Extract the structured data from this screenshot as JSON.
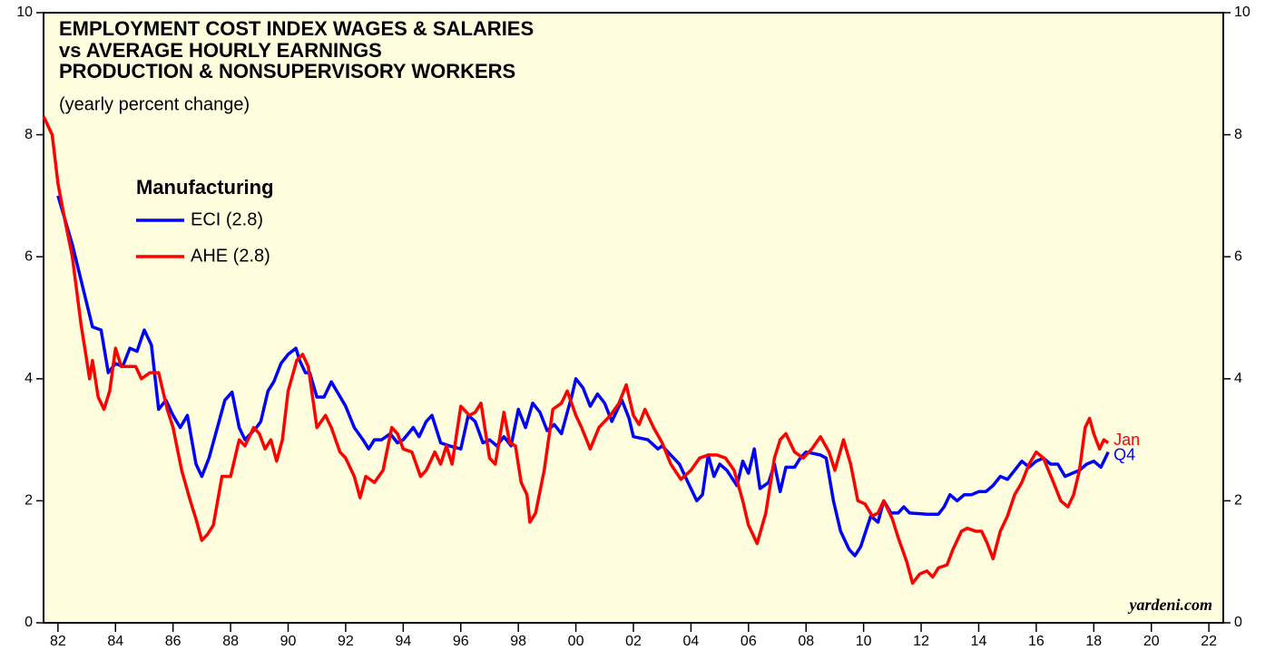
{
  "chart_data": {
    "type": "line",
    "title": [
      "EMPLOYMENT COST INDEX WAGES & SALARIES",
      "vs AVERAGE HOURLY EARNINGS",
      "PRODUCTION & NONSUPERVISORY WORKERS"
    ],
    "subtitle": "(yearly percent change)",
    "legend_title": "Manufacturing",
    "source": "yardeni.com",
    "xlim": [
      1981.5,
      2022.5
    ],
    "ylim": [
      0,
      10
    ],
    "yticks": [
      0,
      2,
      4,
      6,
      8,
      10
    ],
    "xticks": [
      {
        "value": 1982,
        "label": "82"
      },
      {
        "value": 1984,
        "label": "84"
      },
      {
        "value": 1986,
        "label": "86"
      },
      {
        "value": 1988,
        "label": "88"
      },
      {
        "value": 1990,
        "label": "90"
      },
      {
        "value": 1992,
        "label": "92"
      },
      {
        "value": 1994,
        "label": "94"
      },
      {
        "value": 1996,
        "label": "96"
      },
      {
        "value": 1998,
        "label": "98"
      },
      {
        "value": 2000,
        "label": "00"
      },
      {
        "value": 2002,
        "label": "02"
      },
      {
        "value": 2004,
        "label": "04"
      },
      {
        "value": 2006,
        "label": "06"
      },
      {
        "value": 2008,
        "label": "08"
      },
      {
        "value": 2010,
        "label": "10"
      },
      {
        "value": 2012,
        "label": "12"
      },
      {
        "value": 2014,
        "label": "14"
      },
      {
        "value": 2016,
        "label": "16"
      },
      {
        "value": 2018,
        "label": "18"
      },
      {
        "value": 2020,
        "label": "20"
      },
      {
        "value": 2022,
        "label": "22"
      }
    ],
    "background": "#ffffe0",
    "series": [
      {
        "name": "ECI (2.8)",
        "color": "#0000ff",
        "end_label": "Q4",
        "x": [
          1982.0,
          1982.5,
          1983.2,
          1983.5,
          1983.75,
          1984.0,
          1984.25,
          1984.5,
          1984.75,
          1985.0,
          1985.25,
          1985.5,
          1985.75,
          1986.0,
          1986.25,
          1986.5,
          1986.8,
          1987.0,
          1987.25,
          1987.6,
          1987.8,
          1988.05,
          1988.3,
          1988.5,
          1988.9,
          1989.05,
          1989.3,
          1989.5,
          1989.75,
          1990.0,
          1990.27,
          1990.4,
          1990.6,
          1990.75,
          1991.0,
          1991.25,
          1991.5,
          1991.75,
          1992.0,
          1992.3,
          1992.6,
          1992.8,
          1993.0,
          1993.25,
          1993.55,
          1993.8,
          1994.0,
          1994.35,
          1994.55,
          1994.8,
          1995.0,
          1995.3,
          1995.6,
          1996.0,
          1996.26,
          1996.5,
          1996.77,
          1997.0,
          1997.25,
          1997.5,
          1997.75,
          1998.0,
          1998.25,
          1998.5,
          1998.75,
          1999.0,
          1999.25,
          1999.5,
          1999.7,
          1999.85,
          2000.0,
          2000.25,
          2000.5,
          2000.75,
          2001.0,
          2001.25,
          2001.6,
          2001.85,
          2002.0,
          2002.5,
          2002.85,
          2003.0,
          2003.3,
          2003.6,
          2003.9,
          2004.2,
          2004.4,
          2004.6,
          2004.8,
          2005.0,
          2005.25,
          2005.6,
          2005.8,
          2006.0,
          2006.2,
          2006.4,
          2006.7,
          2006.9,
          2007.1,
          2007.3,
          2007.6,
          2007.8,
          2008.0,
          2008.5,
          2008.7,
          2008.95,
          2009.2,
          2009.5,
          2009.7,
          2009.9,
          2010.25,
          2010.5,
          2010.7,
          2010.95,
          2011.2,
          2011.4,
          2011.6,
          2012.2,
          2012.6,
          2012.8,
          2013.0,
          2013.25,
          2013.5,
          2013.75,
          2014.0,
          2014.25,
          2014.5,
          2014.75,
          2015.0,
          2015.25,
          2015.5,
          2015.75,
          2016.0,
          2016.25,
          2016.5,
          2016.75,
          2017.0,
          2017.25,
          2017.5,
          2017.75,
          2018.0,
          2018.25,
          2018.5
        ],
        "values": [
          7.0,
          6.2,
          4.85,
          4.8,
          4.1,
          4.25,
          4.2,
          4.5,
          4.45,
          4.8,
          4.55,
          3.5,
          3.65,
          3.4,
          3.2,
          3.4,
          2.6,
          2.4,
          2.7,
          3.3,
          3.65,
          3.78,
          3.2,
          3.0,
          3.2,
          3.3,
          3.8,
          3.95,
          4.25,
          4.4,
          4.5,
          4.3,
          4.1,
          4.1,
          3.7,
          3.7,
          3.95,
          3.75,
          3.55,
          3.2,
          3.0,
          2.85,
          3.0,
          3.0,
          3.1,
          2.95,
          3.0,
          3.2,
          3.05,
          3.3,
          3.4,
          2.95,
          2.9,
          2.85,
          3.4,
          3.3,
          2.95,
          3.0,
          2.9,
          3.05,
          2.9,
          3.5,
          3.2,
          3.6,
          3.45,
          3.15,
          3.25,
          3.1,
          3.45,
          3.7,
          4.0,
          3.85,
          3.55,
          3.75,
          3.6,
          3.3,
          3.65,
          3.35,
          3.05,
          3.0,
          2.85,
          2.9,
          2.75,
          2.6,
          2.3,
          2.0,
          2.1,
          2.75,
          2.4,
          2.6,
          2.5,
          2.25,
          2.65,
          2.45,
          2.85,
          2.2,
          2.3,
          2.6,
          2.15,
          2.55,
          2.55,
          2.7,
          2.8,
          2.75,
          2.7,
          2.0,
          1.5,
          1.2,
          1.1,
          1.25,
          1.75,
          1.65,
          2.0,
          1.8,
          1.8,
          1.9,
          1.8,
          1.78,
          1.78,
          1.9,
          2.1,
          2.0,
          2.1,
          2.1,
          2.15,
          2.15,
          2.25,
          2.4,
          2.35,
          2.5,
          2.65,
          2.55,
          2.65,
          2.7,
          2.6,
          2.6,
          2.4,
          2.45,
          2.5,
          2.6,
          2.65,
          2.55,
          2.8
        ]
      },
      {
        "name": "AHE (2.8)",
        "color": "#ff0000",
        "end_label": "Jan",
        "x": [
          1981.5,
          1981.8,
          1982.0,
          1982.2,
          1982.5,
          1982.8,
          1983.0,
          1983.1,
          1983.2,
          1983.4,
          1983.6,
          1983.8,
          1984.0,
          1984.2,
          1984.5,
          1984.7,
          1984.9,
          1985.2,
          1985.5,
          1985.8,
          1986.0,
          1986.3,
          1986.6,
          1986.8,
          1987.0,
          1987.2,
          1987.4,
          1987.7,
          1988.0,
          1988.3,
          1988.5,
          1988.8,
          1989.0,
          1989.2,
          1989.4,
          1989.6,
          1989.8,
          1990.0,
          1990.3,
          1990.5,
          1990.7,
          1991.0,
          1991.3,
          1991.5,
          1991.8,
          1992.0,
          1992.3,
          1992.5,
          1992.7,
          1993.0,
          1993.3,
          1993.6,
          1993.8,
          1994.0,
          1994.3,
          1994.6,
          1994.8,
          1995.1,
          1995.3,
          1995.5,
          1995.7,
          1996.0,
          1996.3,
          1996.5,
          1996.7,
          1997.0,
          1997.2,
          1997.5,
          1997.7,
          1997.9,
          1998.1,
          1998.3,
          1998.4,
          1998.6,
          1998.9,
          1999.2,
          1999.5,
          1999.7,
          2000.0,
          2000.2,
          2000.5,
          2000.8,
          2001.2,
          2001.5,
          2001.75,
          2002.0,
          2002.2,
          2002.4,
          2002.7,
          2003.0,
          2003.3,
          2003.65,
          2004.0,
          2004.3,
          2004.6,
          2004.9,
          2005.2,
          2005.5,
          2005.8,
          2006.0,
          2006.3,
          2006.6,
          2006.9,
          2007.1,
          2007.3,
          2007.6,
          2007.9,
          2008.2,
          2008.5,
          2008.8,
          2009.0,
          2009.3,
          2009.55,
          2009.8,
          2010.05,
          2010.3,
          2010.5,
          2010.7,
          2011.0,
          2011.2,
          2011.5,
          2011.7,
          2011.95,
          2012.2,
          2012.4,
          2012.6,
          2012.9,
          2013.1,
          2013.4,
          2013.6,
          2013.9,
          2014.1,
          2014.3,
          2014.5,
          2014.75,
          2015.0,
          2015.25,
          2015.5,
          2015.75,
          2016.0,
          2016.25,
          2016.6,
          2016.85,
          2017.1,
          2017.3,
          2017.5,
          2017.7,
          2017.85,
          2018.0,
          2018.2,
          2018.35,
          2018.5
        ],
        "values": [
          8.3,
          8.0,
          7.2,
          6.7,
          6.0,
          4.9,
          4.3,
          4.0,
          4.3,
          3.7,
          3.5,
          3.8,
          4.5,
          4.2,
          4.2,
          4.2,
          4.0,
          4.1,
          4.1,
          3.5,
          3.2,
          2.5,
          2.0,
          1.7,
          1.35,
          1.45,
          1.6,
          2.4,
          2.4,
          3.0,
          2.9,
          3.2,
          3.1,
          2.85,
          3.0,
          2.65,
          3.0,
          3.8,
          4.3,
          4.4,
          4.2,
          3.2,
          3.4,
          3.2,
          2.8,
          2.7,
          2.4,
          2.05,
          2.4,
          2.3,
          2.5,
          3.2,
          3.1,
          2.85,
          2.8,
          2.4,
          2.5,
          2.8,
          2.6,
          2.9,
          2.6,
          3.55,
          3.4,
          3.45,
          3.6,
          2.7,
          2.6,
          3.45,
          2.95,
          2.9,
          2.3,
          2.1,
          1.65,
          1.8,
          2.5,
          3.5,
          3.6,
          3.8,
          3.4,
          3.2,
          2.85,
          3.2,
          3.4,
          3.6,
          3.9,
          3.4,
          3.25,
          3.5,
          3.2,
          2.95,
          2.6,
          2.35,
          2.5,
          2.7,
          2.75,
          2.75,
          2.7,
          2.5,
          2.0,
          1.6,
          1.3,
          1.8,
          2.7,
          3.0,
          3.1,
          2.8,
          2.7,
          2.85,
          3.05,
          2.8,
          2.5,
          3.0,
          2.6,
          2.0,
          1.95,
          1.75,
          1.8,
          2.0,
          1.7,
          1.4,
          1.0,
          0.65,
          0.8,
          0.85,
          0.75,
          0.9,
          0.95,
          1.2,
          1.5,
          1.55,
          1.5,
          1.5,
          1.3,
          1.05,
          1.5,
          1.75,
          2.1,
          2.3,
          2.6,
          2.8,
          2.7,
          2.3,
          2.0,
          1.9,
          2.1,
          2.5,
          3.2,
          3.35,
          3.1,
          2.85,
          3.0,
          2.95
        ]
      }
    ]
  }
}
